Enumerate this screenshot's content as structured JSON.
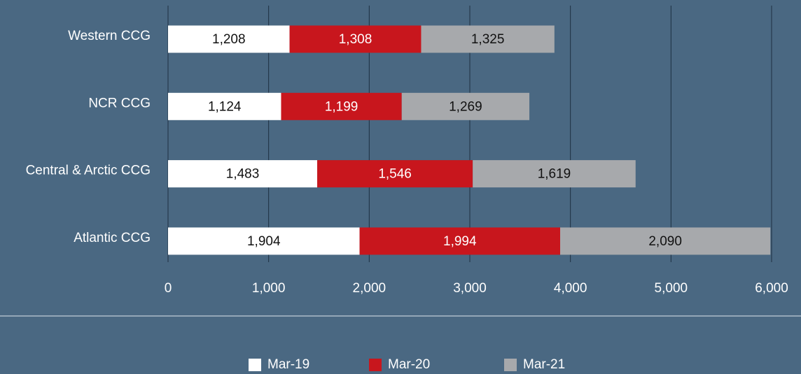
{
  "chart_data": {
    "type": "stacked_barh",
    "categories": [
      "Western CCG",
      "NCR CCG",
      "Central & Arctic CCG",
      "Atlantic CCG"
    ],
    "series": [
      {
        "name": "Mar-19",
        "color": "#ffffff",
        "label_color": "#111111",
        "values": [
          1208,
          1124,
          1483,
          1904
        ],
        "value_labels": [
          "1,208",
          "1,124",
          "1,483",
          "1,904"
        ]
      },
      {
        "name": "Mar-20",
        "color": "#c8161d",
        "label_color": "#ffffff",
        "values": [
          1308,
          1199,
          1546,
          1994
        ],
        "value_labels": [
          "1,308",
          "1,199",
          "1,546",
          "1,994"
        ]
      },
      {
        "name": "Mar-21",
        "color": "#a7a9ac",
        "label_color": "#111111",
        "values": [
          1325,
          1269,
          1619,
          2090
        ],
        "value_labels": [
          "1,325",
          "1,269",
          "1,619",
          "2,090"
        ]
      }
    ],
    "xlim": [
      0,
      6000
    ],
    "xticks": [
      0,
      {
        "value": 1000,
        "label": "1,000"
      },
      {
        "value": 2000,
        "label": "2,000"
      },
      {
        "value": 3000,
        "label": "3,000"
      },
      {
        "value": 4000,
        "label": "4,000"
      },
      {
        "value": 5000,
        "label": "5,000"
      },
      {
        "value": 6000,
        "label": "6,000"
      }
    ],
    "grid": true,
    "legend": "bottom"
  }
}
